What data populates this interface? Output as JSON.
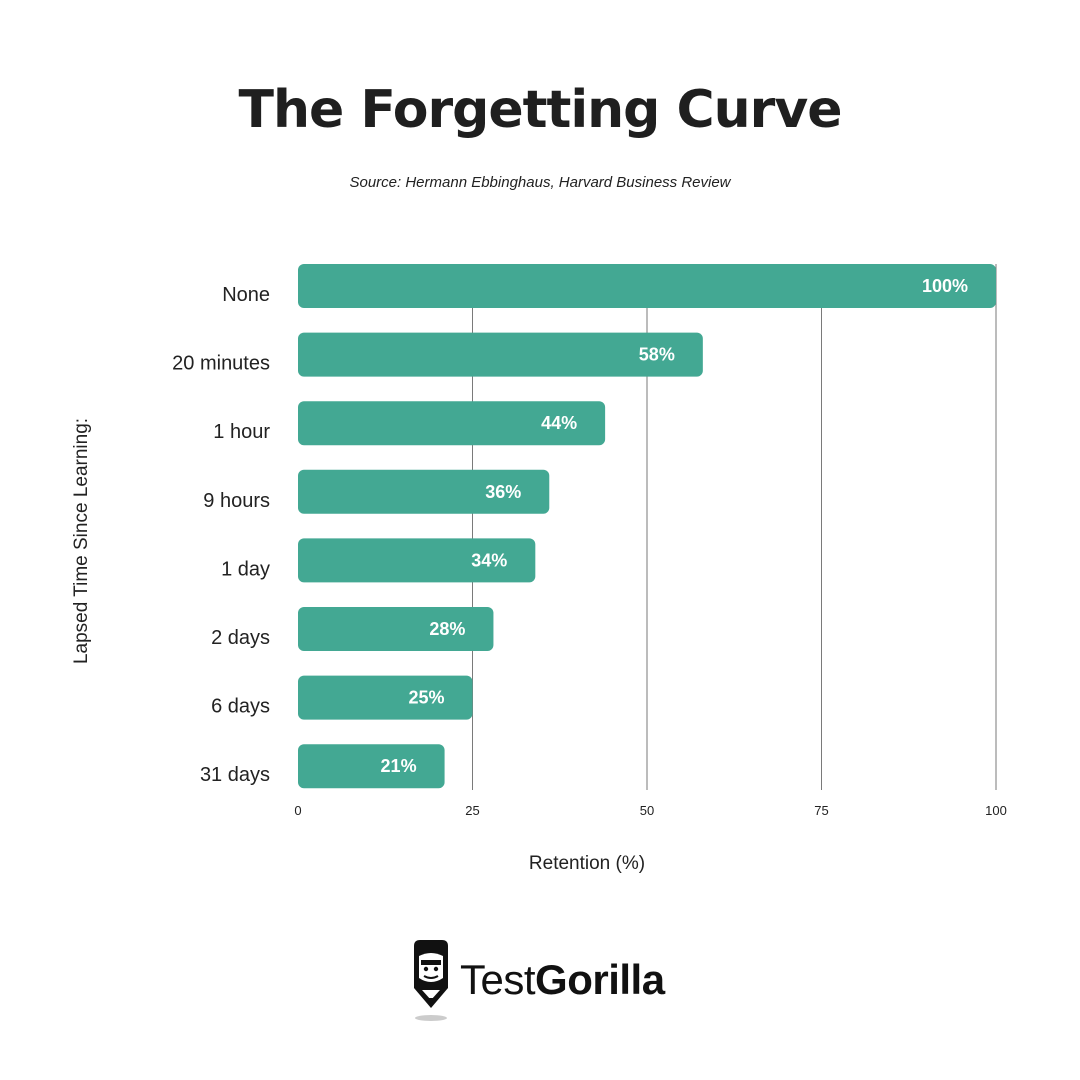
{
  "title": "The Forgetting Curve",
  "subtitle": "Source: Hermann Ebbinghaus, Harvard Business Review",
  "brand": {
    "name_light": "Test",
    "name_bold": "Gorilla",
    "icon": "gorilla-pencil-icon"
  },
  "colors": {
    "bar": "#43a893",
    "grid": "#7a7a7a",
    "text": "#1f1f1f"
  },
  "chart_data": {
    "type": "bar",
    "orientation": "horizontal",
    "title": "The Forgetting Curve",
    "subtitle": "Source: Hermann Ebbinghaus, Harvard Business Review",
    "xlabel": "Retention (%)",
    "ylabel": "Lapsed Time Since Learning:",
    "categories": [
      "None",
      "20 minutes",
      "1 hour",
      "9 hours",
      "1 day",
      "2 days",
      "6 days",
      "31 days"
    ],
    "values": [
      100,
      58,
      44,
      36,
      34,
      28,
      25,
      21
    ],
    "data_labels": [
      "100%",
      "58%",
      "44%",
      "36%",
      "34%",
      "28%",
      "25%",
      "21%"
    ],
    "xlim": [
      0,
      100
    ],
    "xticks": [
      0,
      25,
      50,
      75,
      100
    ],
    "grid": "vertical",
    "legend": "none"
  }
}
